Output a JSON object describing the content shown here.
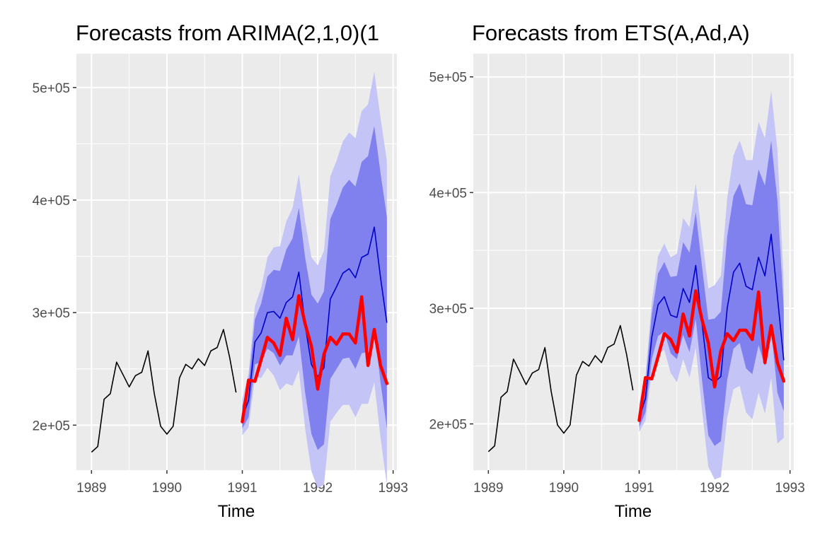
{
  "colors": {
    "panel_background": "#ebebeb",
    "grid": "#ffffff",
    "history_line": "#000000",
    "forecast_line": "#0000cc",
    "actual_line": "#ff0000",
    "band_95": "#c4c4f7",
    "band_80": "#8080ee",
    "tick_text": "#4d4d4d"
  },
  "chart_data": [
    {
      "type": "line",
      "title": "Forecasts from ARIMA(2,1,0)(1",
      "xlabel": "Time",
      "ylabel": "",
      "xlim": [
        1988.8,
        1993.05
      ],
      "ylim": [
        160000,
        530000
      ],
      "x_ticks": [
        1989,
        1990,
        1991,
        1992,
        1993
      ],
      "x_tick_labels": [
        "1989",
        "1990",
        "1991",
        "1992",
        "1993"
      ],
      "y_ticks": [
        200000,
        300000,
        400000,
        500000
      ],
      "y_tick_labels": [
        "2e+05",
        "3e+05",
        "4e+05",
        "5e+05"
      ],
      "grid": true,
      "legend": "none",
      "history": {
        "x": [
          1989.0,
          1989.083,
          1989.167,
          1989.25,
          1989.333,
          1989.417,
          1989.5,
          1989.583,
          1989.667,
          1989.75,
          1989.833,
          1989.917,
          1990.0,
          1990.083,
          1990.167,
          1990.25,
          1990.333,
          1990.417,
          1990.5,
          1990.583,
          1990.667,
          1990.75,
          1990.833,
          1990.917
        ],
        "y": [
          176000,
          181000,
          223000,
          228000,
          256000,
          245000,
          234000,
          244000,
          247000,
          266000,
          228000,
          199000,
          192000,
          199000,
          242000,
          254000,
          250000,
          259000,
          253000,
          266000,
          269000,
          285000,
          260000,
          229000
        ]
      },
      "series": [
        {
          "x": [
            1991.0,
            1991.083,
            1991.167,
            1991.25,
            1991.333,
            1991.417,
            1991.5,
            1991.583,
            1991.667,
            1991.75,
            1991.833,
            1991.917,
            1992.0,
            1992.083,
            1992.167,
            1992.25,
            1992.333,
            1992.417,
            1992.5,
            1992.583,
            1992.667,
            1992.75,
            1992.833,
            1992.917
          ],
          "mean": [
            207000,
            222000,
            274000,
            282000,
            300000,
            301000,
            295000,
            309000,
            314000,
            336000,
            289000,
            254000,
            243000,
            251000,
            312000,
            323000,
            335000,
            339000,
            331000,
            349000,
            352000,
            376000,
            331000,
            291000
          ],
          "lo80": [
            197000,
            207000,
            254000,
            256000,
            268000,
            264000,
            253000,
            262000,
            262000,
            279000,
            229000,
            192000,
            178000,
            183000,
            241000,
            250000,
            259000,
            260000,
            250000,
            264000,
            265000,
            286000,
            238000,
            197000
          ],
          "hi80": [
            217000,
            237000,
            294000,
            308000,
            332000,
            338000,
            337000,
            356000,
            366000,
            393000,
            349000,
            316000,
            308000,
            319000,
            383000,
            396000,
            411000,
            418000,
            412000,
            434000,
            439000,
            466000,
            424000,
            385000
          ],
          "lo95": [
            191000,
            198000,
            242000,
            242000,
            251000,
            244000,
            231000,
            237000,
            235000,
            249000,
            197000,
            159000,
            144000,
            147000,
            203000,
            211000,
            218000,
            218000,
            207000,
            219000,
            219000,
            238000,
            189000,
            147000
          ],
          "hi95": [
            223000,
            246000,
            306000,
            322000,
            349000,
            358000,
            359000,
            381000,
            393000,
            423000,
            381000,
            349000,
            342000,
            355000,
            421000,
            435000,
            452000,
            460000,
            455000,
            479000,
            485000,
            514000,
            473000,
            435000
          ],
          "actual": [
            203000,
            240000,
            239000,
            258000,
            278000,
            273000,
            262000,
            295000,
            276000,
            315000,
            290000,
            270000,
            232000,
            263000,
            278000,
            272000,
            281000,
            281000,
            273000,
            314000,
            253000,
            285000,
            253000,
            237000
          ]
        }
      ]
    },
    {
      "type": "line",
      "title": "Forecasts from ETS(A,Ad,A)",
      "xlabel": "Time",
      "ylabel": "",
      "xlim": [
        1988.8,
        1993.05
      ],
      "ylim": [
        160000,
        520000
      ],
      "x_ticks": [
        1989,
        1990,
        1991,
        1992,
        1993
      ],
      "x_tick_labels": [
        "1989",
        "1990",
        "1991",
        "1992",
        "1993"
      ],
      "y_ticks": [
        200000,
        300000,
        400000,
        500000
      ],
      "y_tick_labels": [
        "2e+05",
        "3e+05",
        "4e+05",
        "5e+05"
      ],
      "grid": true,
      "legend": "none",
      "history": {
        "x": [
          1989.0,
          1989.083,
          1989.167,
          1989.25,
          1989.333,
          1989.417,
          1989.5,
          1989.583,
          1989.667,
          1989.75,
          1989.833,
          1989.917,
          1990.0,
          1990.083,
          1990.167,
          1990.25,
          1990.333,
          1990.417,
          1990.5,
          1990.583,
          1990.667,
          1990.75,
          1990.833,
          1990.917
        ],
        "y": [
          176000,
          181000,
          223000,
          228000,
          256000,
          245000,
          234000,
          244000,
          247000,
          266000,
          228000,
          199000,
          192000,
          199000,
          242000,
          254000,
          250000,
          259000,
          253000,
          266000,
          269000,
          285000,
          260000,
          229000
        ]
      },
      "series": [
        {
          "x": [
            1991.0,
            1991.083,
            1991.167,
            1991.25,
            1991.333,
            1991.417,
            1991.5,
            1991.583,
            1991.667,
            1991.75,
            1991.833,
            1991.917,
            1992.0,
            1992.083,
            1992.167,
            1992.25,
            1992.333,
            1992.417,
            1992.5,
            1992.583,
            1992.667,
            1992.75,
            1992.833,
            1992.917
          ],
          "mean": [
            205000,
            222000,
            275000,
            303000,
            310000,
            294000,
            292000,
            317000,
            305000,
            337000,
            287000,
            240000,
            236000,
            241000,
            300000,
            331000,
            339000,
            319000,
            316000,
            344000,
            328000,
            364000,
            310000,
            255000
          ],
          "lo80": [
            197000,
            210000,
            256000,
            276000,
            280000,
            261000,
            256000,
            277000,
            262000,
            291000,
            238000,
            190000,
            181000,
            185000,
            238000,
            265000,
            270000,
            248000,
            243000,
            268000,
            250000,
            283000,
            227000,
            211000
          ],
          "hi80": [
            213000,
            234000,
            295000,
            330000,
            340000,
            327000,
            328000,
            357000,
            348000,
            383000,
            336000,
            290000,
            291000,
            297000,
            362000,
            397000,
            408000,
            390000,
            389000,
            420000,
            406000,
            445000,
            393000,
            299000
          ],
          "lo95": [
            193000,
            203000,
            245000,
            261000,
            264000,
            244000,
            236000,
            256000,
            240000,
            266000,
            212000,
            163000,
            152000,
            154000,
            205000,
            230000,
            233000,
            210000,
            204000,
            227000,
            209000,
            240000,
            183000,
            188000
          ],
          "hi95": [
            218000,
            241000,
            305000,
            345000,
            356000,
            344000,
            347000,
            378000,
            370000,
            408000,
            362000,
            317000,
            320000,
            328000,
            395000,
            432000,
            445000,
            428000,
            428000,
            461000,
            447000,
            488000,
            437000,
            322000
          ],
          "actual": [
            203000,
            240000,
            239000,
            258000,
            278000,
            273000,
            262000,
            295000,
            276000,
            315000,
            290000,
            270000,
            232000,
            263000,
            278000,
            272000,
            281000,
            281000,
            273000,
            314000,
            253000,
            285000,
            253000,
            237000
          ]
        }
      ]
    }
  ]
}
